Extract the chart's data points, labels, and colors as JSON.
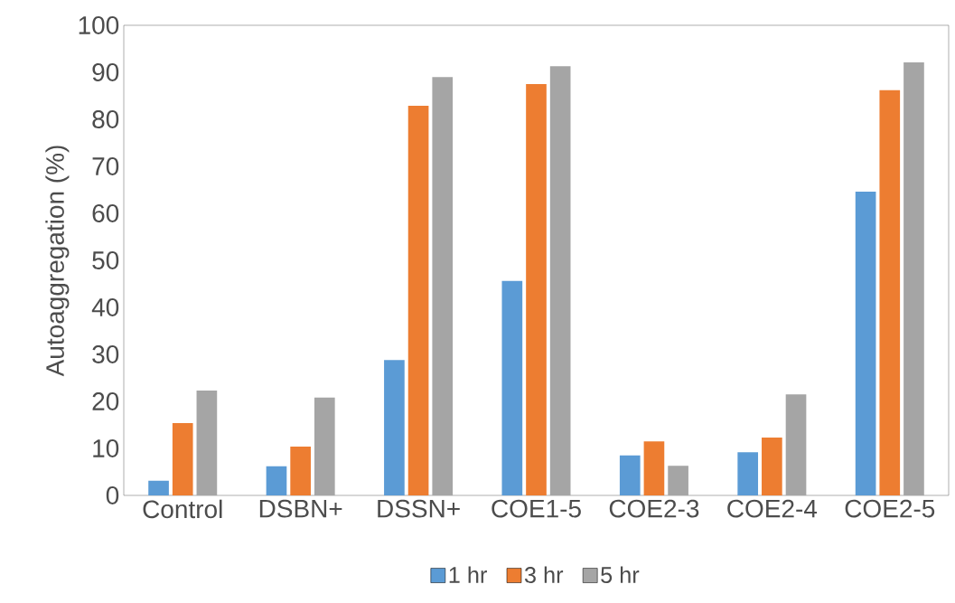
{
  "chart_data": {
    "type": "bar",
    "ylabel": "Autoaggregation  (%)",
    "categories": [
      "Control",
      "DSBN+",
      "DSSN+",
      "COE1-5",
      "COE2-3",
      "COE2-4",
      "COE2-5"
    ],
    "series": [
      {
        "name": "1 hr",
        "color": "#5b9bd5",
        "values": [
          3.1,
          6.2,
          28.8,
          45.6,
          8.5,
          9.2,
          64.6
        ]
      },
      {
        "name": "3 hr",
        "color": "#ed7d31",
        "values": [
          15.4,
          10.4,
          82.9,
          87.5,
          11.5,
          12.3,
          86.2
        ]
      },
      {
        "name": "5 hr",
        "color": "#a5a5a5",
        "values": [
          22.3,
          20.8,
          89.0,
          91.3,
          6.3,
          21.5,
          92.1
        ]
      }
    ],
    "ylim": [
      0,
      100
    ],
    "yticks": [
      0,
      10,
      20,
      30,
      40,
      50,
      60,
      70,
      80,
      90,
      100
    ],
    "legend": "bottom",
    "grid": false
  }
}
